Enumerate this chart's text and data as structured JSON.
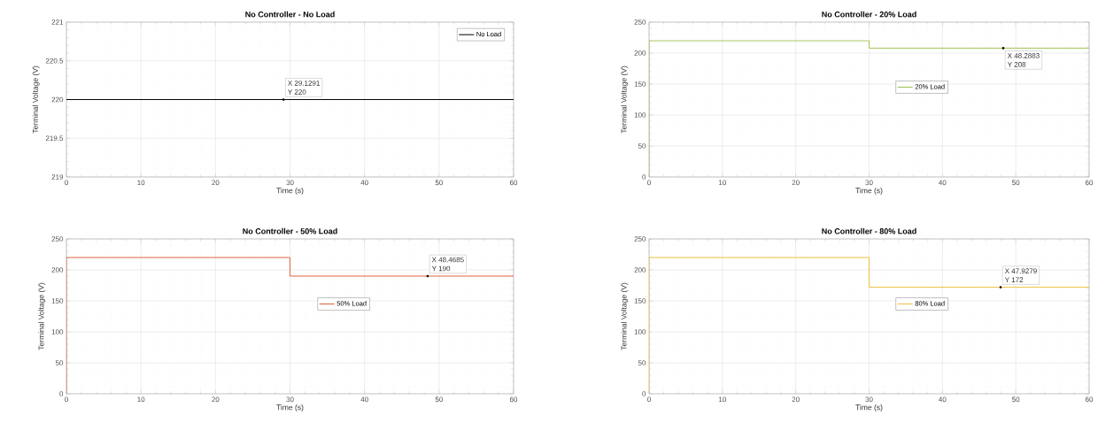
{
  "chart_data": [
    {
      "type": "line",
      "title": "No Controller - No Load",
      "xlabel": "Time (s)",
      "ylabel": "Terminal Voltage (V)",
      "xlim": [
        0,
        60
      ],
      "ylim": [
        219,
        221
      ],
      "xticks": [
        0,
        10,
        20,
        30,
        40,
        50,
        60
      ],
      "yticks": [
        219,
        219.5,
        220,
        220.5,
        221
      ],
      "grid": true,
      "legend": "top right",
      "series": [
        {
          "name": "No Load",
          "color": "#000000",
          "x": [
            0,
            60
          ],
          "values": [
            220,
            220
          ]
        }
      ],
      "annotations": [
        {
          "text": "X 29.1291",
          "x": 29.1291,
          "y": 220
        },
        {
          "text": "Y 220",
          "x": 29.1291,
          "y": 220
        }
      ]
    },
    {
      "type": "line",
      "title": "No Controller - 20% Load",
      "xlabel": "Time (s)",
      "ylabel": "Terminal Voltage (V)",
      "xlim": [
        0,
        60
      ],
      "ylim": [
        0,
        250
      ],
      "xticks": [
        0,
        10,
        20,
        30,
        40,
        50,
        60
      ],
      "yticks": [
        0,
        50,
        100,
        150,
        200,
        250
      ],
      "grid": true,
      "legend": "center",
      "series": [
        {
          "name": "20% Load",
          "color": "#9fc24d",
          "x": [
            0,
            0,
            30,
            30,
            60
          ],
          "values": [
            0,
            220,
            220,
            208,
            208
          ]
        }
      ],
      "annotations": [
        {
          "text": "X 48.2883",
          "x": 48.2883,
          "y": 208
        },
        {
          "text": "Y 208",
          "x": 48.2883,
          "y": 208
        }
      ]
    },
    {
      "type": "line",
      "title": "No Controller - 50% Load",
      "xlabel": "Time (s)",
      "ylabel": "Terminal Voltage (V)",
      "xlim": [
        0,
        60
      ],
      "ylim": [
        0,
        250
      ],
      "xticks": [
        0,
        10,
        20,
        30,
        40,
        50,
        60
      ],
      "yticks": [
        0,
        50,
        100,
        150,
        200,
        250
      ],
      "grid": true,
      "legend": "center",
      "series": [
        {
          "name": "50% Load",
          "color": "#e0643c",
          "x": [
            0,
            0,
            30,
            30,
            60
          ],
          "values": [
            0,
            220,
            220,
            190,
            190
          ]
        }
      ],
      "annotations": [
        {
          "text": "X 48.4685",
          "x": 48.4685,
          "y": 190
        },
        {
          "text": "Y 190",
          "x": 48.4685,
          "y": 190
        }
      ]
    },
    {
      "type": "line",
      "title": "No Controller - 80% Load",
      "xlabel": "Time (s)",
      "ylabel": "Terminal Voltage (V)",
      "xlim": [
        0,
        60
      ],
      "ylim": [
        0,
        250
      ],
      "xticks": [
        0,
        10,
        20,
        30,
        40,
        50,
        60
      ],
      "yticks": [
        0,
        50,
        100,
        150,
        200,
        250
      ],
      "grid": true,
      "legend": "center",
      "series": [
        {
          "name": "80% Load",
          "color": "#edc040",
          "x": [
            0,
            0,
            30,
            30,
            60
          ],
          "values": [
            0,
            220,
            220,
            172,
            172
          ]
        }
      ],
      "annotations": [
        {
          "text": "X 47.9279",
          "x": 47.9279,
          "y": 172
        },
        {
          "text": "Y 172",
          "x": 47.9279,
          "y": 172
        }
      ]
    }
  ]
}
